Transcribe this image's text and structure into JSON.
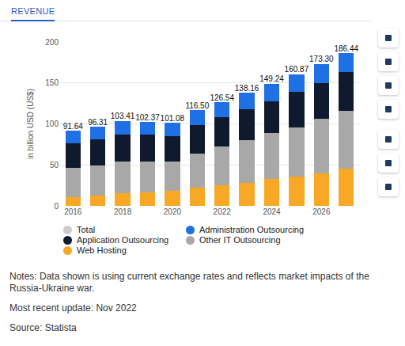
{
  "header": "REVENUE",
  "chart_data": {
    "type": "bar",
    "stacked": true,
    "data_labels": true,
    "grid": true,
    "ylabel": "in billion USD (US$)",
    "categories": [
      "2016",
      null,
      "2018",
      null,
      "2020",
      null,
      "2022",
      null,
      "2024",
      null,
      "2026",
      null
    ],
    "ylim": [
      0,
      200
    ],
    "yticks": [
      0,
      50,
      100,
      150,
      200
    ],
    "series": [
      {
        "name": "Total",
        "type": "text",
        "color": "#cccccc",
        "values": [
          91.64,
          96.31,
          103.41,
          102.37,
          101.08,
          116.5,
          126.54,
          138.16,
          149.24,
          160.87,
          173.3,
          186.44
        ],
        "value_labels": [
          "91.64",
          "96.31",
          "103.41",
          "102.37",
          "101.08",
          "116.50",
          "126.54",
          "138.16",
          "149.24",
          "160.87",
          "173.30",
          "186.44"
        ]
      },
      {
        "name": "Administration Outsourcing",
        "type": "bar",
        "color": "#1f6fe5",
        "values": [
          15.64,
          15.31,
          16.41,
          15.37,
          16.08,
          17.5,
          18.54,
          20.16,
          21.24,
          21.87,
          23.3,
          23.44
        ]
      },
      {
        "name": "Application Outsourcing",
        "type": "bar",
        "color": "#0f1a2e",
        "values": [
          30,
          32,
          33,
          33,
          31,
          35,
          36,
          38,
          39,
          43,
          44,
          47
        ]
      },
      {
        "name": "Other IT Outsourcing",
        "type": "bar",
        "color": "#a8a8a8",
        "values": [
          35.5,
          36.5,
          38.5,
          37.5,
          36,
          42,
          47,
          51.5,
          56,
          60,
          66,
          71
        ]
      },
      {
        "name": "Web Hosting",
        "type": "bar",
        "color": "#f9a825",
        "values": [
          10.5,
          12.5,
          15.5,
          16.5,
          18,
          22,
          25,
          28.5,
          33,
          36,
          40,
          45
        ]
      }
    ]
  },
  "notes": [
    "Notes: Data shown is using current exchange rates and reflects market impacts of the Russia-Ukraine war.",
    "Most recent update: Nov 2022",
    "Source: Statista"
  ]
}
